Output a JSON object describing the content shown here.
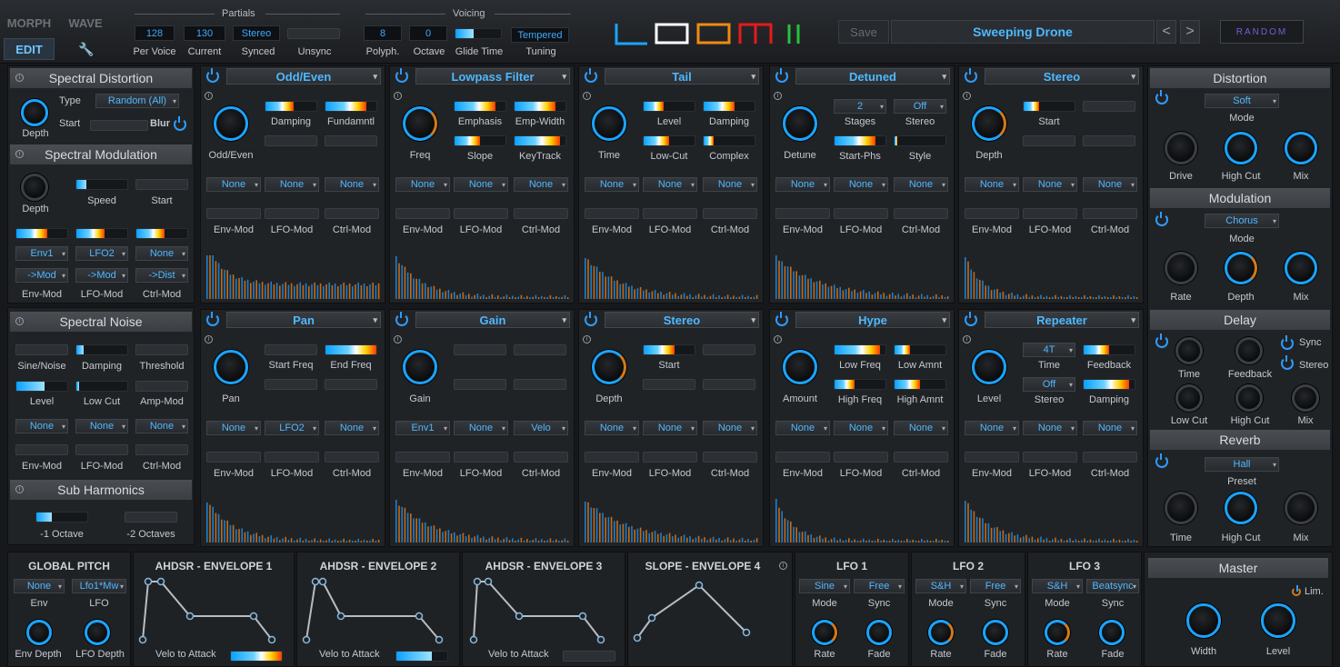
{
  "top": {
    "morph": "MORPH",
    "wave": "WAVE",
    "edit": "EDIT",
    "partials_title": "Partials",
    "voicing_title": "Voicing",
    "per_voice": "128",
    "current": "130",
    "synced": "Stereo",
    "per_voice_l": "Per Voice",
    "current_l": "Current",
    "synced_l": "Synced",
    "unsync_l": "Unsync",
    "polyph": "8",
    "octave": "0",
    "tuning": "Tempered",
    "polyph_l": "Polyph.",
    "octave_l": "Octave",
    "glide_l": "Glide Time",
    "tuning_l": "Tuning",
    "save": "Save",
    "preset": "Sweeping Drone",
    "prev": "<",
    "next": ">",
    "random": "RANDOM"
  },
  "left": {
    "spec_dist": "Spectral Distortion",
    "type_l": "Type",
    "type": "Random (All)",
    "start_l": "Start",
    "blur_l": "Blur",
    "depth_l": "Depth",
    "spec_mod": "Spectral Modulation",
    "speed_l": "Speed",
    "mstart_l": "Start",
    "mdepth_l": "Depth",
    "env1": "Env1",
    "lfo2": "LFO2",
    "none": "None",
    "mod1": "->Mod",
    "mod2": "->Mod",
    "dist": "->Dist",
    "envmod": "Env-Mod",
    "lfomod": "LFO-Mod",
    "ctrlmod": "Ctrl-Mod",
    "spec_noise": "Spectral Noise",
    "sine_noise": "Sine/Noise",
    "damping": "Damping",
    "threshold": "Threshold",
    "level": "Level",
    "lowcut": "Low Cut",
    "ampmod": "Amp-Mod",
    "n1": "None",
    "n2": "None",
    "n3": "None",
    "n_env": "Env-Mod",
    "n_lfo": "LFO-Mod",
    "n_ctrl": "Ctrl-Mod",
    "sub_harm": "Sub Harmonics",
    "oct1": "-1 Octave",
    "oct2": "-2 Octaves"
  },
  "panels": [
    {
      "title": "Odd/Even",
      "knob": "Odd/Even",
      "p": [
        {
          "l": "Damping",
          "f": 0.55
        },
        {
          "l": "Fundamntl",
          "f": 0.8
        }
      ],
      "p2": [],
      "mods": [
        "None",
        "None",
        "None"
      ]
    },
    {
      "title": "Lowpass Filter",
      "knob": "Freq",
      "p": [
        {
          "l": "Emphasis",
          "f": 0.8
        },
        {
          "l": "Emp-Width",
          "f": 0.8
        }
      ],
      "p2": [
        {
          "l": "Slope",
          "f": 0.5
        },
        {
          "l": "KeyTrack",
          "f": 0.9
        }
      ],
      "mods": [
        "None",
        "None",
        "None"
      ]
    },
    {
      "title": "Tail",
      "knob": "Time",
      "p": [
        {
          "l": "Level",
          "f": 0.4
        },
        {
          "l": "Damping",
          "f": 0.6
        }
      ],
      "p2": [
        {
          "l": "Low-Cut",
          "f": 0.5
        },
        {
          "l": "Complex",
          "f": 0.2
        }
      ],
      "mods": [
        "None",
        "None",
        "None"
      ]
    },
    {
      "title": "Detuned",
      "knob": "Detune",
      "p": [
        {
          "l": "Stages",
          "v": "2"
        },
        {
          "l": "Stereo",
          "v": "Off"
        }
      ],
      "p2": [
        {
          "l": "Start-Phs",
          "f": 0.8
        },
        {
          "l": "Style",
          "f": 0.05
        }
      ],
      "mods": [
        "None",
        "None",
        "None"
      ]
    },
    {
      "title": "Stereo",
      "knob": "Depth",
      "p": [
        {
          "l": "Start",
          "f": 0.3
        },
        {
          "l": "",
          "f": 0
        }
      ],
      "p2": [],
      "mods": [
        "None",
        "None",
        "None"
      ]
    },
    {
      "title": "Pan",
      "knob": "Pan",
      "p": [
        {
          "l": "Start Freq",
          "f": 0
        },
        {
          "l": "End Freq",
          "f": 1
        }
      ],
      "p2": [],
      "mods": [
        "None",
        "LFO2",
        "None"
      ]
    },
    {
      "title": "Gain",
      "knob": "Gain",
      "p": [],
      "p2": [],
      "mods": [
        "Env1",
        "None",
        "Velo"
      ]
    },
    {
      "title": "Stereo",
      "knob": "Depth",
      "p": [
        {
          "l": "Start",
          "f": 0.6
        },
        {
          "l": "",
          "f": 0
        }
      ],
      "p2": [],
      "mods": [
        "None",
        "None",
        "None"
      ]
    },
    {
      "title": "Hype",
      "knob": "Amount",
      "p": [
        {
          "l": "Low Freq",
          "f": 0.9
        },
        {
          "l": "Low Amnt",
          "f": 0.3
        }
      ],
      "p2": [
        {
          "l": "High Freq",
          "f": 0.4
        },
        {
          "l": "High Amnt",
          "f": 0.5
        }
      ],
      "mods": [
        "None",
        "None",
        "None"
      ]
    },
    {
      "title": "Repeater",
      "knob": "Level",
      "p": [
        {
          "l": "Time",
          "v": "4T"
        },
        {
          "l": "Feedback",
          "f": 0.5
        }
      ],
      "p2": [
        {
          "l": "Stereo",
          "v": "Off"
        },
        {
          "l": "Damping",
          "f": 0.9
        }
      ],
      "mods": [
        "None",
        "None",
        "None"
      ]
    }
  ],
  "modlabels": {
    "env": "Env-Mod",
    "lfo": "LFO-Mod",
    "ctrl": "Ctrl-Mod"
  },
  "right": {
    "distortion": "Distortion",
    "dist_mode": "Soft",
    "mode_l": "Mode",
    "drive": "Drive",
    "highcut": "High Cut",
    "mix": "Mix",
    "modulation": "Modulation",
    "mod_mode": "Chorus",
    "rate": "Rate",
    "depth": "Depth",
    "delay": "Delay",
    "time": "Time",
    "feedback": "Feedback",
    "sync": "Sync",
    "stereo": "Stereo",
    "lowcut": "Low Cut",
    "reverb": "Reverb",
    "rev_preset": "Hall",
    "preset_l": "Preset"
  },
  "bottom": {
    "gp": "GLOBAL PITCH",
    "gp_env": "None",
    "gp_lfo": "Lfo1*Mw",
    "env_l": "Env",
    "lfo_l": "LFO",
    "envdepth": "Env Depth",
    "lfodepth": "LFO Depth",
    "env1": "AHDSR - ENVELOPE 1",
    "env2": "AHDSR - ENVELOPE 2",
    "env3": "AHDSR - ENVELOPE 3",
    "env4": "SLOPE - ENVELOPE 4",
    "velo": "Velo to Attack",
    "lfo1": "LFO 1",
    "lfo2": "LFO 2",
    "lfo3": "LFO 3",
    "lfo1_mode": "Sine",
    "lfo1_sync": "Free",
    "lfo2_mode": "S&H",
    "lfo2_sync": "Free",
    "lfo3_mode": "S&H",
    "lfo3_sync": "Beatsync",
    "mode": "Mode",
    "sync": "Sync",
    "rate": "Rate",
    "fade": "Fade",
    "master": "Master",
    "lim": "Lim.",
    "width": "Width",
    "level": "Level"
  },
  "colors": {
    "accent": "#1aa4ff",
    "orange": "#d17a1a"
  }
}
